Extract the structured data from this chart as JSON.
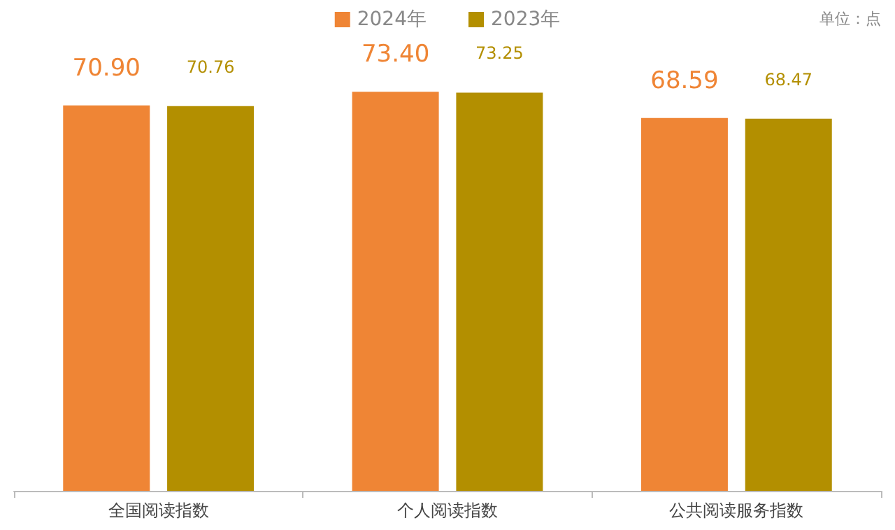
{
  "chart_data": {
    "type": "bar",
    "categories": [
      "全国阅读指数",
      "个人阅读指数",
      "公共阅读服务指数"
    ],
    "series": [
      {
        "name": "2024年",
        "color": "#ef8535",
        "values": [
          70.9,
          73.4,
          68.59
        ],
        "value_labels": [
          "70.90",
          "73.40",
          "68.59"
        ]
      },
      {
        "name": "2023年",
        "color": "#b38f00",
        "values": [
          70.76,
          73.25,
          68.47
        ],
        "value_labels": [
          "70.76",
          "73.25",
          "68.47"
        ]
      }
    ],
    "tick_labels": "x",
    "legend": "top",
    "annotations": [
      "单位：点"
    ]
  }
}
